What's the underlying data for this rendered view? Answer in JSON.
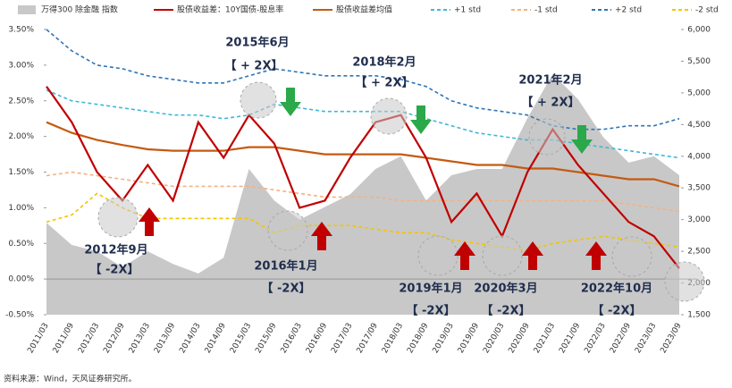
{
  "chart_data": {
    "type": "line",
    "categories": [
      "2011/03",
      "2011/09",
      "2012/03",
      "2012/09",
      "2013/03",
      "2013/09",
      "2014/03",
      "2014/09",
      "2015/03",
      "2015/09",
      "2016/03",
      "2016/09",
      "2017/03",
      "2017/09",
      "2018/03",
      "2018/09",
      "2019/03",
      "2019/09",
      "2020/03",
      "2020/09",
      "2021/03",
      "2021/09",
      "2022/03",
      "2022/09",
      "2023/03",
      "2023/09"
    ],
    "series": [
      {
        "name": "万得300 除金融 指数",
        "color": "#c8c8c8",
        "axis": "y2",
        "kind": "area",
        "values": [
          2950,
          2600,
          2500,
          2250,
          2500,
          2300,
          2150,
          2400,
          3800,
          3300,
          3000,
          3200,
          3400,
          3800,
          4000,
          3300,
          3700,
          3800,
          3800,
          4600,
          5300,
          4900,
          4300,
          3900,
          4000,
          3700
        ]
      },
      {
        "name": "股债收益差：10Y国债-股息率",
        "color": "#c00000",
        "values": [
          2.7,
          2.2,
          1.5,
          1.1,
          1.6,
          1.1,
          2.2,
          1.7,
          2.3,
          1.9,
          1.0,
          1.1,
          1.7,
          2.2,
          2.3,
          1.7,
          0.8,
          1.2,
          0.6,
          1.5,
          2.1,
          1.6,
          1.2,
          0.8,
          0.6,
          0.15
        ]
      },
      {
        "name": "股债收益差均值",
        "color": "#c55a11",
        "values": [
          2.2,
          2.05,
          1.95,
          1.88,
          1.82,
          1.8,
          1.8,
          1.8,
          1.85,
          1.85,
          1.8,
          1.75,
          1.75,
          1.75,
          1.75,
          1.7,
          1.65,
          1.6,
          1.6,
          1.55,
          1.55,
          1.5,
          1.45,
          1.4,
          1.4,
          1.3
        ]
      },
      {
        "name": "+1 std",
        "color": "#3fb7d8",
        "dash": true,
        "values": [
          2.65,
          2.5,
          2.45,
          2.4,
          2.35,
          2.3,
          2.3,
          2.25,
          2.3,
          2.45,
          2.4,
          2.35,
          2.35,
          2.35,
          2.35,
          2.25,
          2.15,
          2.05,
          2.0,
          1.95,
          1.95,
          1.9,
          1.85,
          1.8,
          1.75,
          1.7
        ]
      },
      {
        "name": "-1 std",
        "color": "#f4b183",
        "dash": true,
        "values": [
          1.45,
          1.5,
          1.45,
          1.4,
          1.35,
          1.3,
          1.3,
          1.3,
          1.3,
          1.25,
          1.2,
          1.15,
          1.15,
          1.15,
          1.1,
          1.1,
          1.1,
          1.1,
          1.1,
          1.1,
          1.1,
          1.1,
          1.1,
          1.05,
          1.0,
          0.95
        ]
      },
      {
        "name": "+2 std",
        "color": "#2e75b6",
        "dash": true,
        "values": [
          3.5,
          3.2,
          3.0,
          2.95,
          2.85,
          2.8,
          2.75,
          2.75,
          2.85,
          2.95,
          2.9,
          2.85,
          2.85,
          2.85,
          2.8,
          2.7,
          2.5,
          2.4,
          2.35,
          2.3,
          2.15,
          2.1,
          2.1,
          2.15,
          2.15,
          2.25
        ]
      },
      {
        "name": "-2 std",
        "color": "#f5c400",
        "dash": true,
        "values": [
          0.8,
          0.9,
          1.2,
          1.0,
          0.85,
          0.85,
          0.85,
          0.85,
          0.85,
          0.65,
          0.75,
          0.75,
          0.75,
          0.7,
          0.65,
          0.65,
          0.55,
          0.5,
          0.45,
          0.4,
          0.5,
          0.55,
          0.6,
          0.55,
          0.5,
          0.45
        ]
      }
    ],
    "ylim": [
      -0.5,
      3.5
    ],
    "yticks": [
      {
        "value": -0.5,
        "label": "-0.50%"
      },
      {
        "value": 0,
        "label": "0.00%"
      },
      {
        "value": 0.5,
        "label": "0.50%"
      },
      {
        "value": 1,
        "label": "1.00%"
      },
      {
        "value": 1.5,
        "label": "1.50%"
      },
      {
        "value": 2,
        "label": "2.00%"
      },
      {
        "value": 2.5,
        "label": "2.50%"
      },
      {
        "value": 3,
        "label": "3.00%"
      },
      {
        "value": 3.5,
        "label": "3.50%"
      }
    ],
    "y2lim": [
      1500,
      6000
    ],
    "y2ticks": [
      {
        "value": 1500,
        "label": "1,500"
      },
      {
        "value": 2000,
        "label": "2,000"
      },
      {
        "value": 2500,
        "label": "2,500"
      },
      {
        "value": 3000,
        "label": "3,000"
      },
      {
        "value": 3500,
        "label": "3,500"
      },
      {
        "value": 4000,
        "label": "4,000"
      },
      {
        "value": 4500,
        "label": "4,500"
      },
      {
        "value": 5000,
        "label": "5,000"
      },
      {
        "value": 5500,
        "label": "5,500"
      },
      {
        "value": 6000,
        "label": "6,000"
      }
    ],
    "annotations": [
      "2015年6月",
      "【 + 2X】",
      "2018年2月",
      "【 + 2X】",
      "2021年2月",
      "【 + 2X】",
      "2012年9月",
      "【 -2X】",
      "2016年1月",
      "【 -2X】",
      "2019年1月",
      "【 -2X】",
      "2020年3月",
      "【 -2X】",
      "2022年10月",
      "【 -2X】"
    ],
    "source": "资料来源：Wind，天风证券研究所。"
  }
}
